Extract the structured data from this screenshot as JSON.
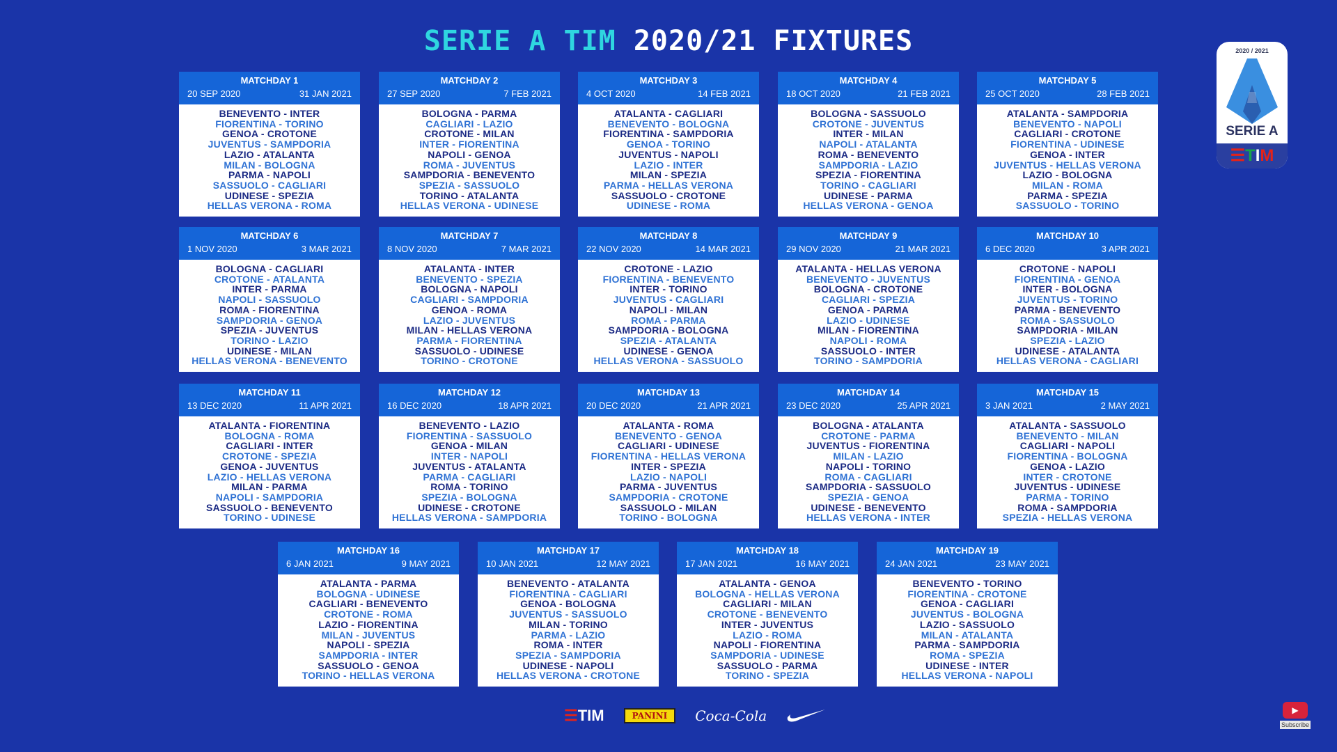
{
  "title": {
    "accent": "SERIE A TIM",
    "rest": "2020/21 FIXTURES"
  },
  "logo": {
    "season": "2020 / 2021",
    "name": "SERIE A",
    "sponsor": "TIM"
  },
  "sponsors": {
    "tim": "TIM",
    "panini": "PANINI",
    "coke": "Coca-Cola",
    "nike": "nike-swoosh-icon"
  },
  "subscribe": {
    "label": "Subscribe"
  },
  "colors": {
    "background": "#1a34a8",
    "header": "#1565d8",
    "accent": "#2fd6e0",
    "fixture_dark": "#1b2a84",
    "fixture_light": "#2f72d4"
  },
  "matchdays": [
    {
      "title": "MATCHDAY 1",
      "start": "20 SEP 2020",
      "end": "31 JAN 2021",
      "fixtures": [
        "BENEVENTO - INTER",
        "FIORENTINA - TORINO",
        "GENOA - CROTONE",
        "JUVENTUS - SAMPDORIA",
        "LAZIO - ATALANTA",
        "MILAN - BOLOGNA",
        "PARMA - NAPOLI",
        "SASSUOLO - CAGLIARI",
        "UDINESE - SPEZIA",
        "HELLAS VERONA - ROMA"
      ]
    },
    {
      "title": "MATCHDAY 2",
      "start": "27 SEP 2020",
      "end": "7 FEB 2021",
      "fixtures": [
        "BOLOGNA - PARMA",
        "CAGLIARI - LAZIO",
        "CROTONE - MILAN",
        "INTER - FIORENTINA",
        "NAPOLI - GENOA",
        "ROMA - JUVENTUS",
        "SAMPDORIA - BENEVENTO",
        "SPEZIA - SASSUOLO",
        "TORINO - ATALANTA",
        "HELLAS VERONA - UDINESE"
      ]
    },
    {
      "title": "MATCHDAY 3",
      "start": "4 OCT 2020",
      "end": "14 FEB 2021",
      "fixtures": [
        "ATALANTA - CAGLIARI",
        "BENEVENTO - BOLOGNA",
        "FIORENTINA - SAMPDORIA",
        "GENOA - TORINO",
        "JUVENTUS - NAPOLI",
        "LAZIO - INTER",
        "MILAN - SPEZIA",
        "PARMA - HELLAS VERONA",
        "SASSUOLO - CROTONE",
        "UDINESE - ROMA"
      ]
    },
    {
      "title": "MATCHDAY 4",
      "start": "18 OCT 2020",
      "end": "21 FEB 2021",
      "fixtures": [
        "BOLOGNA - SASSUOLO",
        "CROTONE - JUVENTUS",
        "INTER - MILAN",
        "NAPOLI - ATALANTA",
        "ROMA - BENEVENTO",
        "SAMPDORIA - LAZIO",
        "SPEZIA - FIORENTINA",
        "TORINO - CAGLIARI",
        "UDINESE - PARMA",
        "HELLAS VERONA - GENOA"
      ]
    },
    {
      "title": "MATCHDAY 5",
      "start": "25 OCT 2020",
      "end": "28 FEB 2021",
      "fixtures": [
        "ATALANTA - SAMPDORIA",
        "BENEVENTO - NAPOLI",
        "CAGLIARI - CROTONE",
        "FIORENTINA - UDINESE",
        "GENOA - INTER",
        "JUVENTUS - HELLAS VERONA",
        "LAZIO - BOLOGNA",
        "MILAN - ROMA",
        "PARMA - SPEZIA",
        "SASSUOLO - TORINO"
      ]
    },
    {
      "title": "MATCHDAY 6",
      "start": "1 NOV 2020",
      "end": "3 MAR 2021",
      "fixtures": [
        "BOLOGNA - CAGLIARI",
        "CROTONE - ATALANTA",
        "INTER - PARMA",
        "NAPOLI - SASSUOLO",
        "ROMA - FIORENTINA",
        "SAMPDORIA - GENOA",
        "SPEZIA - JUVENTUS",
        "TORINO - LAZIO",
        "UDINESE - MILAN",
        "HELLAS VERONA - BENEVENTO"
      ]
    },
    {
      "title": "MATCHDAY 7",
      "start": "8 NOV 2020",
      "end": "7 MAR 2021",
      "fixtures": [
        "ATALANTA - INTER",
        "BENEVENTO - SPEZIA",
        "BOLOGNA - NAPOLI",
        "CAGLIARI - SAMPDORIA",
        "GENOA - ROMA",
        "LAZIO - JUVENTUS",
        "MILAN - HELLAS VERONA",
        "PARMA - FIORENTINA",
        "SASSUOLO - UDINESE",
        "TORINO - CROTONE"
      ]
    },
    {
      "title": "MATCHDAY 8",
      "start": "22 NOV 2020",
      "end": "14 MAR 2021",
      "fixtures": [
        "CROTONE - LAZIO",
        "FIORENTINA - BENEVENTO",
        "INTER - TORINO",
        "JUVENTUS - CAGLIARI",
        "NAPOLI - MILAN",
        "ROMA - PARMA",
        "SAMPDORIA - BOLOGNA",
        "SPEZIA - ATALANTA",
        "UDINESE - GENOA",
        "HELLAS VERONA - SASSUOLO"
      ]
    },
    {
      "title": "MATCHDAY 9",
      "start": "29 NOV 2020",
      "end": "21 MAR 2021",
      "fixtures": [
        "ATALANTA - HELLAS VERONA",
        "BENEVENTO - JUVENTUS",
        "BOLOGNA - CROTONE",
        "CAGLIARI - SPEZIA",
        "GENOA - PARMA",
        "LAZIO - UDINESE",
        "MILAN - FIORENTINA",
        "NAPOLI - ROMA",
        "SASSUOLO - INTER",
        "TORINO - SAMPDORIA"
      ]
    },
    {
      "title": "MATCHDAY 10",
      "start": "6 DEC 2020",
      "end": "3 APR 2021",
      "fixtures": [
        "CROTONE - NAPOLI",
        "FIORENTINA - GENOA",
        "INTER - BOLOGNA",
        "JUVENTUS - TORINO",
        "PARMA - BENEVENTO",
        "ROMA - SASSUOLO",
        "SAMPDORIA - MILAN",
        "SPEZIA - LAZIO",
        "UDINESE - ATALANTA",
        "HELLAS VERONA - CAGLIARI"
      ]
    },
    {
      "title": "MATCHDAY 11",
      "start": "13 DEC 2020",
      "end": "11 APR 2021",
      "fixtures": [
        "ATALANTA - FIORENTINA",
        "BOLOGNA - ROMA",
        "CAGLIARI - INTER",
        "CROTONE - SPEZIA",
        "GENOA - JUVENTUS",
        "LAZIO - HELLAS VERONA",
        "MILAN - PARMA",
        "NAPOLI - SAMPDORIA",
        "SASSUOLO - BENEVENTO",
        "TORINO - UDINESE"
      ]
    },
    {
      "title": "MATCHDAY 12",
      "start": "16 DEC 2020",
      "end": "18 APR 2021",
      "fixtures": [
        "BENEVENTO - LAZIO",
        "FIORENTINA - SASSUOLO",
        "GENOA - MILAN",
        "INTER - NAPOLI",
        "JUVENTUS - ATALANTA",
        "PARMA - CAGLIARI",
        "ROMA - TORINO",
        "SPEZIA - BOLOGNA",
        "UDINESE - CROTONE",
        "HELLAS VERONA - SAMPDORIA"
      ]
    },
    {
      "title": "MATCHDAY 13",
      "start": "20 DEC 2020",
      "end": "21 APR 2021",
      "fixtures": [
        "ATALANTA - ROMA",
        "BENEVENTO - GENOA",
        "CAGLIARI - UDINESE",
        "FIORENTINA - HELLAS VERONA",
        "INTER - SPEZIA",
        "LAZIO - NAPOLI",
        "PARMA - JUVENTUS",
        "SAMPDORIA - CROTONE",
        "SASSUOLO - MILAN",
        "TORINO - BOLOGNA"
      ]
    },
    {
      "title": "MATCHDAY 14",
      "start": "23 DEC 2020",
      "end": "25 APR 2021",
      "fixtures": [
        "BOLOGNA - ATALANTA",
        "CROTONE - PARMA",
        "JUVENTUS - FIORENTINA",
        "MILAN - LAZIO",
        "NAPOLI - TORINO",
        "ROMA - CAGLIARI",
        "SAMPDORIA - SASSUOLO",
        "SPEZIA - GENOA",
        "UDINESE - BENEVENTO",
        "HELLAS VERONA - INTER"
      ]
    },
    {
      "title": "MATCHDAY 15",
      "start": "3 JAN 2021",
      "end": "2 MAY 2021",
      "fixtures": [
        "ATALANTA - SASSUOLO",
        "BENEVENTO - MILAN",
        "CAGLIARI - NAPOLI",
        "FIORENTINA - BOLOGNA",
        "GENOA - LAZIO",
        "INTER - CROTONE",
        "JUVENTUS - UDINESE",
        "PARMA - TORINO",
        "ROMA - SAMPDORIA",
        "SPEZIA - HELLAS VERONA"
      ]
    },
    {
      "title": "MATCHDAY 16",
      "start": "6 JAN 2021",
      "end": "9 MAY 2021",
      "fixtures": [
        "ATALANTA - PARMA",
        "BOLOGNA - UDINESE",
        "CAGLIARI - BENEVENTO",
        "CROTONE - ROMA",
        "LAZIO - FIORENTINA",
        "MILAN - JUVENTUS",
        "NAPOLI - SPEZIA",
        "SAMPDORIA - INTER",
        "SASSUOLO - GENOA",
        "TORINO - HELLAS VERONA"
      ]
    },
    {
      "title": "MATCHDAY 17",
      "start": "10 JAN 2021",
      "end": "12 MAY 2021",
      "fixtures": [
        "BENEVENTO - ATALANTA",
        "FIORENTINA - CAGLIARI",
        "GENOA - BOLOGNA",
        "JUVENTUS - SASSUOLO",
        "MILAN - TORINO",
        "PARMA - LAZIO",
        "ROMA - INTER",
        "SPEZIA - SAMPDORIA",
        "UDINESE - NAPOLI",
        "HELLAS VERONA - CROTONE"
      ]
    },
    {
      "title": "MATCHDAY 18",
      "start": "17 JAN 2021",
      "end": "16 MAY 2021",
      "fixtures": [
        "ATALANTA - GENOA",
        "BOLOGNA - HELLAS VERONA",
        "CAGLIARI - MILAN",
        "CROTONE - BENEVENTO",
        "INTER - JUVENTUS",
        "LAZIO - ROMA",
        "NAPOLI - FIORENTINA",
        "SAMPDORIA - UDINESE",
        "SASSUOLO - PARMA",
        "TORINO - SPEZIA"
      ]
    },
    {
      "title": "MATCHDAY 19",
      "start": "24 JAN 2021",
      "end": "23 MAY 2021",
      "fixtures": [
        "BENEVENTO - TORINO",
        "FIORENTINA - CROTONE",
        "GENOA - CAGLIARI",
        "JUVENTUS - BOLOGNA",
        "LAZIO - SASSUOLO",
        "MILAN - ATALANTA",
        "PARMA - SAMPDORIA",
        "ROMA - SPEZIA",
        "UDINESE - INTER",
        "HELLAS VERONA - NAPOLI"
      ]
    }
  ]
}
